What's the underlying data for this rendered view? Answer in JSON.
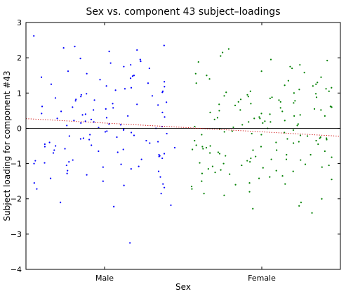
{
  "chart_data": {
    "type": "scatter",
    "title": "Sex vs. component 43 subject–loadings",
    "xlabel": "Sex",
    "ylabel": "Subject loading for component #43",
    "categories": [
      "Male",
      "Female"
    ],
    "ylim": [
      -4,
      3
    ],
    "yticks": [
      3,
      2,
      1,
      0,
      -1,
      -2,
      -3,
      -4
    ],
    "ytick_labels": [
      "3",
      "2",
      "1",
      "0",
      "−1",
      "−2",
      "−3",
      "−4"
    ],
    "grid": false,
    "zero_line": true,
    "trend_line": {
      "style": "dotted",
      "color": "#cc0000",
      "male_value": 0.15,
      "female_value": -0.1
    },
    "series": [
      {
        "category": "Male",
        "color": "#0000ff",
        "x_spread": [
          -0.45,
          0.45
        ],
        "points": [
          2.62,
          2.35,
          2.32,
          2.28,
          2.22,
          2.18,
          1.98,
          1.95,
          1.9,
          1.85,
          1.8,
          1.75,
          1.7,
          1.62,
          1.55,
          1.5,
          1.48,
          1.45,
          1.42,
          1.38,
          1.32,
          1.28,
          1.25,
          1.2,
          1.18,
          1.15,
          1.12,
          1.08,
          1.05,
          1.02,
          0.98,
          0.95,
          0.92,
          0.9,
          0.86,
          0.82,
          0.8,
          0.78,
          0.74,
          0.7,
          0.68,
          0.66,
          0.62,
          0.6,
          0.58,
          0.55,
          0.52,
          0.48,
          0.45,
          0.42,
          0.4,
          0.38,
          0.35,
          0.32,
          0.3,
          0.28,
          0.25,
          0.22,
          0.2,
          0.18,
          0.15,
          0.12,
          0.1,
          0.08,
          0.05,
          0.02,
          0.0,
          -0.02,
          -0.05,
          -0.08,
          -0.1,
          -0.12,
          -0.15,
          -0.18,
          -0.2,
          -0.22,
          -0.25,
          -0.28,
          -0.3,
          -0.32,
          -0.35,
          -0.38,
          -0.4,
          -0.42,
          -0.45,
          -0.48,
          -0.5,
          -0.52,
          -0.55,
          -0.58,
          -0.6,
          -0.62,
          -0.65,
          -0.68,
          -0.7,
          -0.72,
          -0.75,
          -0.78,
          -0.8,
          -0.85,
          -0.88,
          -0.9,
          -0.92,
          -0.95,
          -0.98,
          -1.0,
          -1.02,
          -1.05,
          -1.08,
          -1.1,
          -1.15,
          -1.2,
          -1.22,
          -1.28,
          -1.32,
          -1.38,
          -1.42,
          -1.5,
          -1.55,
          -1.58,
          -1.62,
          -1.68,
          -1.72,
          -1.85,
          -2.1,
          -2.18,
          -2.22,
          -3.25
        ]
      },
      {
        "category": "Female",
        "color": "#008000",
        "x_spread": [
          -0.45,
          0.45
        ],
        "points": [
          2.25,
          2.15,
          2.05,
          1.95,
          1.88,
          1.8,
          1.75,
          1.7,
          1.62,
          1.55,
          1.5,
          1.45,
          1.4,
          1.35,
          1.3,
          1.28,
          1.25,
          1.2,
          1.15,
          1.12,
          1.1,
          1.05,
          1.02,
          1.0,
          0.98,
          0.95,
          0.92,
          0.9,
          0.88,
          0.85,
          0.82,
          0.8,
          0.78,
          0.75,
          0.72,
          0.7,
          0.68,
          0.65,
          0.62,
          0.6,
          0.58,
          0.55,
          0.52,
          0.5,
          0.48,
          0.45,
          0.42,
          0.4,
          0.38,
          0.35,
          0.32,
          0.3,
          0.28,
          0.25,
          0.22,
          0.2,
          0.18,
          0.15,
          0.12,
          0.1,
          0.08,
          0.05,
          0.03,
          0.0,
          -0.02,
          -0.05,
          -0.08,
          -0.1,
          -0.12,
          -0.15,
          -0.18,
          -0.2,
          -0.22,
          -0.25,
          -0.28,
          -0.3,
          -0.32,
          -0.35,
          -0.38,
          -0.4,
          -0.42,
          -0.45,
          -0.48,
          -0.5,
          -0.52,
          -0.55,
          -0.58,
          -0.6,
          -0.62,
          -0.65,
          -0.68,
          -0.7,
          -0.72,
          -0.75,
          -0.78,
          -0.8,
          -0.82,
          -0.85,
          -0.88,
          -0.9,
          -0.92,
          -0.95,
          -0.98,
          -1.0,
          -1.02,
          -1.05,
          -1.08,
          -1.1,
          -1.12,
          -1.15,
          -1.18,
          -1.2,
          -1.25,
          -1.28,
          -1.3,
          -1.35,
          -1.38,
          -1.42,
          -1.45,
          -1.5,
          -1.55,
          -1.6,
          -1.65,
          -1.72,
          -1.8,
          -1.85,
          -1.9,
          -2.0,
          -2.1,
          -2.2,
          -2.28,
          -2.4,
          1.92,
          1.58,
          1.22,
          0.88,
          0.52,
          0.18,
          -0.18,
          -0.52,
          -0.88,
          -1.22,
          -1.58,
          0.75,
          0.35,
          -0.35,
          -0.75,
          0.62,
          -0.62,
          0.28,
          -0.28,
          1.05,
          -1.05
        ]
      }
    ]
  }
}
